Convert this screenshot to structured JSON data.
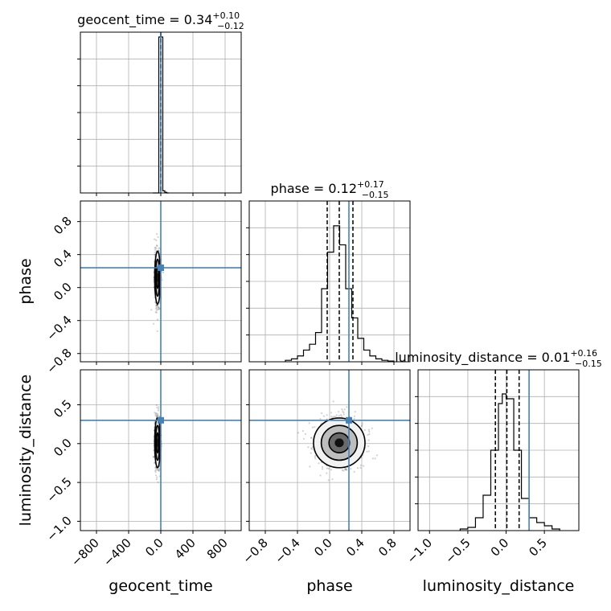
{
  "truth_color": "#4682b4",
  "chart_data": [
    {
      "type": "histogram",
      "panel": "geocent_time",
      "title_name": "geocent_time",
      "title_value": "0.34",
      "title_plus": "+0.10",
      "title_minus": "−0.12",
      "xlim": [
        -1000,
        1000
      ],
      "xticks": [
        -800,
        -400,
        0,
        400,
        800
      ],
      "bin_edges": [
        -100,
        -75,
        -50,
        -25,
        0,
        25,
        50,
        75,
        100
      ],
      "counts": [
        0,
        0,
        0,
        0.97,
        0.97,
        0.013,
        0.004,
        0
      ],
      "ylim": [
        0,
        1
      ],
      "quantiles": [
        0.22,
        0.34,
        0.44
      ],
      "truth": 0,
      "grid": true
    },
    {
      "type": "histogram",
      "panel": "phase",
      "title_name": "phase",
      "title_value": "0.12",
      "title_plus": "+0.17",
      "title_minus": "−0.15",
      "xlim": [
        -1.0,
        1.0
      ],
      "xticks": [
        -0.8,
        -0.4,
        0.0,
        0.4,
        0.8
      ],
      "bin_edges": [
        -0.55,
        -0.475,
        -0.4,
        -0.325,
        -0.25,
        -0.175,
        -0.1,
        -0.025,
        0.05,
        0.125,
        0.2,
        0.275,
        0.35,
        0.425,
        0.5,
        0.575,
        0.65,
        0.725,
        0.8
      ],
      "counts": [
        0.01,
        0.02,
        0.04,
        0.08,
        0.12,
        0.2,
        0.5,
        0.75,
        0.93,
        0.8,
        0.5,
        0.3,
        0.16,
        0.08,
        0.04,
        0.02,
        0.01,
        0.005
      ],
      "ylim": [
        0,
        1.1
      ],
      "quantiles": [
        -0.03,
        0.12,
        0.29
      ],
      "truth": 0.24,
      "grid": true
    },
    {
      "type": "histogram",
      "panel": "luminosity_distance",
      "title_name": "luminosity_distance",
      "title_value": "0.01",
      "title_plus": "+0.16",
      "title_minus": "−0.15",
      "xlim": [
        -1.15,
        0.95
      ],
      "xticks": [
        -1.0,
        -0.5,
        0.0,
        0.5
      ],
      "bin_edges": [
        -0.6,
        -0.5,
        -0.4,
        -0.3,
        -0.2,
        -0.1,
        -0.05,
        0.0,
        0.1,
        0.2,
        0.3,
        0.4,
        0.5,
        0.6,
        0.7
      ],
      "counts": [
        0.01,
        0.02,
        0.08,
        0.22,
        0.5,
        0.79,
        0.85,
        0.82,
        0.5,
        0.2,
        0.08,
        0.05,
        0.03,
        0.01
      ],
      "ylim": [
        0,
        1.0
      ],
      "quantiles": [
        -0.14,
        0.01,
        0.17
      ],
      "truth": 0.3,
      "grid": true
    },
    {
      "type": "scatter-2d",
      "x_param": "geocent_time",
      "y_param": "phase",
      "xlim": [
        -1000,
        1000
      ],
      "ylim": [
        -0.9,
        1.05
      ],
      "center": [
        -40,
        0.12
      ],
      "spread": [
        18,
        0.16
      ],
      "truth": [
        0,
        0.24
      ]
    },
    {
      "type": "scatter-2d",
      "x_param": "geocent_time",
      "y_param": "luminosity_distance",
      "xlim": [
        -1000,
        1000
      ],
      "ylim": [
        -1.12,
        0.95
      ],
      "center": [
        -40,
        0.01
      ],
      "spread": [
        18,
        0.16
      ],
      "truth": [
        0,
        0.3
      ]
    },
    {
      "type": "scatter-2d",
      "x_param": "phase",
      "y_param": "luminosity_distance",
      "xlim": [
        -1.0,
        1.0
      ],
      "ylim": [
        -1.12,
        0.95
      ],
      "xticks": [
        -0.8,
        -0.4,
        0.0,
        0.4,
        0.8
      ],
      "center": [
        0.12,
        0.01
      ],
      "spread": [
        0.16,
        0.16
      ],
      "truth": [
        0.24,
        0.3
      ]
    }
  ],
  "axis_labels": {
    "x": [
      "geocent_time",
      "phase",
      "luminosity_distance"
    ],
    "y": [
      "phase",
      "luminosity_distance"
    ]
  },
  "y_ticks": {
    "phase": [
      0.8,
      0.4,
      0.0,
      -0.4,
      -0.8
    ],
    "luminosity_distance": [
      0.5,
      0.0,
      -0.5,
      -1.0
    ]
  }
}
